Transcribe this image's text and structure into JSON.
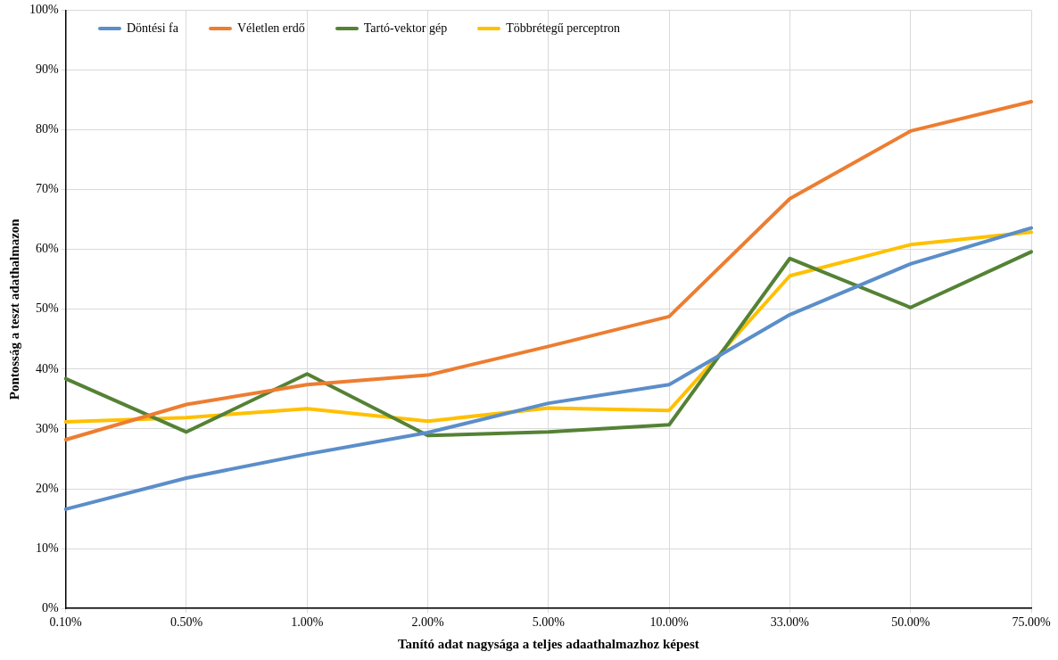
{
  "chart_data": {
    "type": "line",
    "xlabel": "Tanító adat nagysága a teljes adaathalmazhoz képest",
    "ylabel": "Pontosság a teszt adathalmazon",
    "categories": [
      "0.10%",
      "0.50%",
      "1.00%",
      "2.00%",
      "5.00%",
      "10.00%",
      "33.00%",
      "50.00%",
      "75.00%"
    ],
    "series": [
      {
        "name": "Döntési fa",
        "color": "#5b8ec9",
        "values": [
          16.6,
          21.8,
          25.8,
          29.4,
          34.3,
          37.4,
          49.1,
          57.6,
          63.6
        ]
      },
      {
        "name": "Véletlen erdő",
        "color": "#ed7d31",
        "values": [
          28.2,
          34.1,
          37.4,
          39.0,
          43.8,
          48.8,
          68.5,
          79.8,
          84.7
        ]
      },
      {
        "name": "Tartó-vektor gép",
        "color": "#548235",
        "values": [
          38.4,
          29.5,
          39.2,
          28.9,
          29.5,
          30.7,
          58.5,
          50.3,
          59.6
        ]
      },
      {
        "name": "Többrétegű perceptron",
        "color": "#ffc000",
        "values": [
          31.2,
          31.9,
          33.4,
          31.3,
          33.5,
          33.1,
          55.6,
          60.8,
          62.9
        ]
      }
    ],
    "ylim": [
      0,
      100
    ],
    "yticks": [
      {
        "value": 0,
        "label": "0%"
      },
      {
        "value": 10,
        "label": "10%"
      },
      {
        "value": 20,
        "label": "20%"
      },
      {
        "value": 30,
        "label": "30%"
      },
      {
        "value": 40,
        "label": "40%"
      },
      {
        "value": 50,
        "label": "50%"
      },
      {
        "value": 60,
        "label": "60%"
      },
      {
        "value": 70,
        "label": "70%"
      },
      {
        "value": 80,
        "label": "80%"
      },
      {
        "value": 90,
        "label": "90%"
      },
      {
        "value": 100,
        "label": "100%"
      }
    ],
    "grid": true,
    "legend": "top left",
    "marker": "none",
    "line_style": "solid"
  }
}
